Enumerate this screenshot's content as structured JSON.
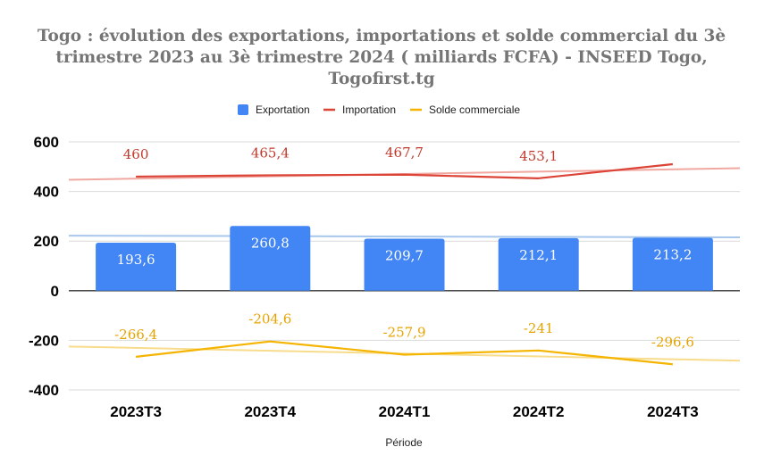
{
  "chart_data": {
    "type": "bar",
    "title_lines": [
      "Togo : évolution des exportations, importations et solde commercial du 3è",
      "trimestre 2023 au 3è trimestre 2024 ( milliards FCFA)  - INSEED Togo,",
      "Togofirst.tg"
    ],
    "xlabel": "Période",
    "ylabel": "",
    "categories": [
      "2023T3",
      "2023T4",
      "2024T1",
      "2024T2",
      "2024T3"
    ],
    "ylim": [
      -400,
      600
    ],
    "yticks": [
      -400,
      -200,
      0,
      200,
      400,
      600
    ],
    "grid": true,
    "legend_position": "top",
    "series": [
      {
        "name": "Exportation",
        "type": "bar",
        "color": "#4285f4",
        "values": [
          193.6,
          260.8,
          209.7,
          212.1,
          213.2
        ],
        "labels": [
          "193,6",
          "260,8",
          "209,7",
          "212,1",
          "213,2"
        ],
        "label_color": "#ffffff",
        "trendline": {
          "start": 222,
          "end": 215,
          "color": "#a8c7ec"
        }
      },
      {
        "name": "Importation",
        "type": "line",
        "color": "#db4437",
        "values": [
          460,
          465.4,
          467.7,
          453.1,
          510
        ],
        "labels": [
          "460",
          "465,4",
          "467,7",
          "453,1",
          ""
        ],
        "label_color": "#c0392b",
        "trendline": {
          "start": 447,
          "end": 494,
          "color": "#f0a8a1"
        }
      },
      {
        "name": "Solde commerciale",
        "type": "line",
        "color": "#f4b400",
        "values": [
          -266.4,
          -204.6,
          -257.9,
          -241,
          -296.6
        ],
        "labels": [
          "-266,4",
          "-204,6",
          "-257,9",
          "-241",
          "-296,6"
        ],
        "label_color": "#e6a400",
        "trendline": {
          "start": -225,
          "end": -282,
          "color": "#f8dc8c"
        }
      }
    ]
  }
}
